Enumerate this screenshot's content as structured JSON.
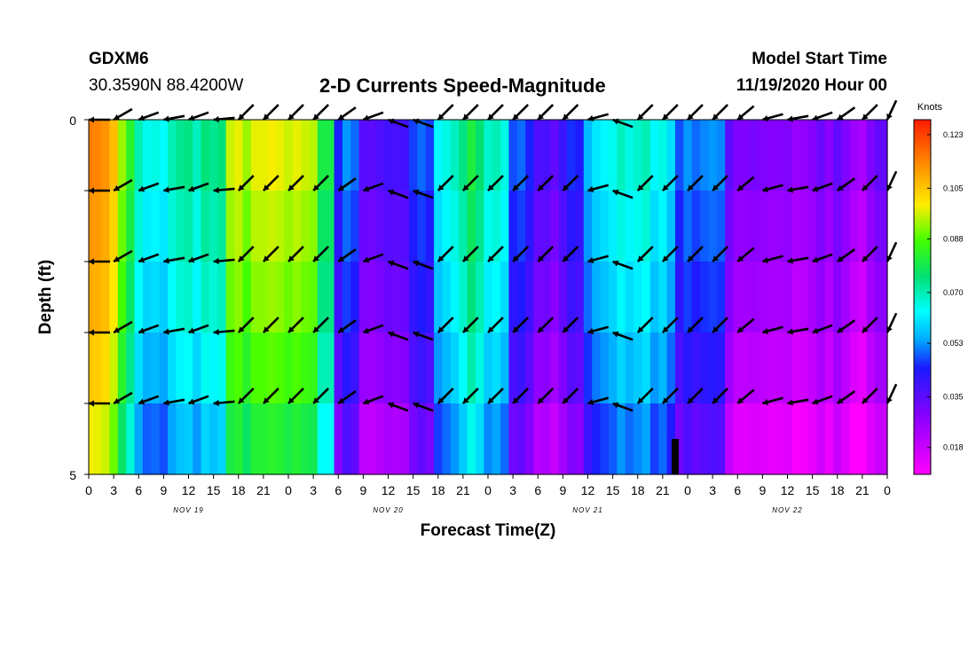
{
  "header": {
    "station_id": "GDXM6",
    "coordinates": "30.3590N 88.4200W",
    "title": "2-D Currents Speed-Magnitude",
    "start_label": "Model Start Time",
    "start_value": "11/19/2020 Hour 00"
  },
  "chart_data": {
    "type": "heatmap",
    "title": "2-D Currents Speed-Magnitude",
    "xlabel": "Forecast Time(Z)",
    "ylabel": "Depth (ft)",
    "units_label": "Knots",
    "x_hours_range": [
      0,
      96
    ],
    "y_depth_range": [
      0,
      5
    ],
    "x_tick_labels": [
      "0",
      "3",
      "6",
      "9",
      "12",
      "15",
      "18",
      "21",
      "0",
      "3",
      "6",
      "9",
      "12",
      "15",
      "18",
      "21",
      "0",
      "3",
      "6",
      "9",
      "12",
      "15",
      "18",
      "21",
      "0",
      "3",
      "6",
      "9",
      "12",
      "15",
      "18",
      "21",
      "0"
    ],
    "y_tick_labels": [
      "0",
      "5"
    ],
    "date_labels": [
      {
        "label": "NOV 19",
        "hour": 12
      },
      {
        "label": "NOV 20",
        "hour": 36
      },
      {
        "label": "NOV 21",
        "hour": 60
      },
      {
        "label": "NOV 22",
        "hour": 84
      }
    ],
    "colorbar_ticks": [
      "0.123",
      "0.105",
      "0.088",
      "0.070",
      "0.053",
      "0.035",
      "0.018"
    ],
    "colorbar_range": [
      0.009,
      0.128
    ],
    "depth_layers": 5,
    "time_hours": [
      0,
      1,
      2,
      3,
      4,
      5,
      6,
      7,
      8,
      9,
      10,
      11,
      12,
      13,
      14,
      15,
      16,
      17,
      18,
      19,
      20,
      21,
      22,
      23,
      24,
      25,
      26,
      27,
      28,
      29,
      30,
      31,
      32,
      33,
      34,
      35,
      36,
      37,
      38,
      39,
      40,
      41,
      42,
      43,
      44,
      45,
      46,
      47,
      48,
      49,
      50,
      51,
      52,
      53,
      54,
      55,
      56,
      57,
      58,
      59,
      60,
      61,
      62,
      63,
      64,
      65,
      66,
      67,
      68,
      69,
      70,
      71,
      72,
      73,
      74,
      75,
      76,
      77,
      78,
      79,
      80,
      81,
      82,
      83,
      84,
      85,
      86,
      87,
      88,
      89,
      90,
      91,
      92,
      93,
      94,
      95,
      96
    ],
    "surface_speed": [
      0.115,
      0.114,
      0.112,
      0.106,
      0.093,
      0.083,
      0.07,
      0.065,
      0.066,
      0.064,
      0.07,
      0.073,
      0.074,
      0.069,
      0.075,
      0.073,
      0.075,
      0.096,
      0.098,
      0.093,
      0.098,
      0.098,
      0.099,
      0.098,
      0.096,
      0.098,
      0.096,
      0.095,
      0.08,
      0.08,
      0.045,
      0.053,
      0.05,
      0.036,
      0.035,
      0.037,
      0.039,
      0.038,
      0.039,
      0.047,
      0.05,
      0.047,
      0.063,
      0.066,
      0.069,
      0.074,
      0.081,
      0.076,
      0.068,
      0.07,
      0.066,
      0.048,
      0.05,
      0.045,
      0.037,
      0.038,
      0.034,
      0.04,
      0.046,
      0.044,
      0.056,
      0.061,
      0.063,
      0.065,
      0.069,
      0.066,
      0.068,
      0.07,
      0.063,
      0.066,
      0.06,
      0.048,
      0.053,
      0.05,
      0.052,
      0.053,
      0.052,
      0.035,
      0.03,
      0.03,
      0.031,
      0.03,
      0.029,
      0.029,
      0.03,
      0.026,
      0.027,
      0.029,
      0.033,
      0.028,
      0.034,
      0.03,
      0.025,
      0.023,
      0.03,
      0.034,
      0.034
    ],
    "layer_offsets": [
      0,
      -0.003,
      -0.006,
      -0.01,
      -0.016
    ],
    "markers": [
      {
        "hour": 70.5,
        "depth_from": 4.5,
        "depth_to": 5
      }
    ],
    "arrows": [
      {
        "hour": 0,
        "dir": 270
      },
      {
        "hour": 3,
        "dir": 240
      },
      {
        "hour": 6,
        "dir": 250
      },
      {
        "hour": 9,
        "dir": 260
      },
      {
        "hour": 12,
        "dir": 250
      },
      {
        "hour": 15,
        "dir": 265
      },
      {
        "hour": 18,
        "dir": 225
      },
      {
        "hour": 21,
        "dir": 225
      },
      {
        "hour": 24,
        "dir": 225
      },
      {
        "hour": 27,
        "dir": 225
      },
      {
        "hour": 30,
        "dir": 235
      },
      {
        "hour": 33,
        "dir": 250
      },
      {
        "hour": 36,
        "dir": 290
      },
      {
        "hour": 39,
        "dir": 290
      },
      {
        "hour": 42,
        "dir": 225
      },
      {
        "hour": 45,
        "dir": 225
      },
      {
        "hour": 48,
        "dir": 225
      },
      {
        "hour": 51,
        "dir": 225
      },
      {
        "hour": 54,
        "dir": 225
      },
      {
        "hour": 57,
        "dir": 225
      },
      {
        "hour": 60,
        "dir": 255
      },
      {
        "hour": 63,
        "dir": 290
      },
      {
        "hour": 66,
        "dir": 225
      },
      {
        "hour": 69,
        "dir": 225
      },
      {
        "hour": 72,
        "dir": 225
      },
      {
        "hour": 75,
        "dir": 225
      },
      {
        "hour": 78,
        "dir": 230
      },
      {
        "hour": 81,
        "dir": 255
      },
      {
        "hour": 84,
        "dir": 260
      },
      {
        "hour": 87,
        "dir": 250
      },
      {
        "hour": 90,
        "dir": 235
      },
      {
        "hour": 93,
        "dir": 225
      },
      {
        "hour": 96,
        "dir": 205
      }
    ]
  }
}
